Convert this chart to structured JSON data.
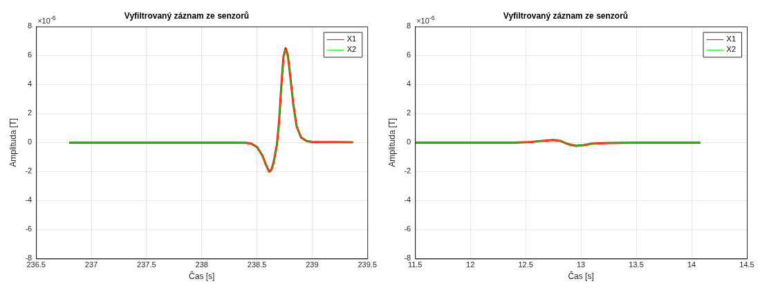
{
  "chart_data": [
    {
      "type": "line",
      "title": "Vyfiltrovaný záznam ze senzorů",
      "xlabel": "Čas [s]",
      "ylabel": "Amplituda [T]",
      "annotations": [
        "×10$^{-6}$"
      ],
      "xlim": [
        236.5,
        239.5
      ],
      "xticks": [
        236.5,
        237,
        237.5,
        238,
        238.5,
        239,
        239.5
      ],
      "ylim": [
        -8,
        8
      ],
      "yticks": [
        -8,
        -6,
        -4,
        -2,
        0,
        2,
        4,
        6,
        8
      ],
      "grid": true,
      "legend": "top right",
      "marker": "none",
      "line_style": "solid",
      "series": [
        {
          "name": "X1",
          "color": "#ff0000",
          "x": [
            236.8,
            238.0,
            238.3,
            238.4,
            238.45,
            238.5,
            238.55,
            238.58,
            238.61,
            238.63,
            238.65,
            238.68,
            238.7,
            238.72,
            238.74,
            238.76,
            238.78,
            238.8,
            238.83,
            238.86,
            238.9,
            238.95,
            239.0,
            239.37
          ],
          "values": [
            0,
            0,
            0,
            -0.02,
            -0.08,
            -0.3,
            -0.9,
            -1.5,
            -2.0,
            -1.9,
            -1.4,
            -0.2,
            1.4,
            3.8,
            5.9,
            6.5,
            6.0,
            4.7,
            2.6,
            1.1,
            0.35,
            0.1,
            0.04,
            0.02
          ]
        },
        {
          "name": "X2",
          "color": "#00ff00",
          "x": [
            236.8,
            238.0,
            238.3,
            238.4,
            238.45,
            238.5,
            238.55,
            238.58,
            238.61,
            238.63,
            238.65,
            238.68,
            238.7,
            238.72,
            238.74,
            238.76,
            238.78,
            238.8,
            238.83,
            238.86,
            238.9,
            238.95,
            239.0,
            239.38
          ],
          "values": [
            0,
            0,
            0,
            -0.02,
            -0.08,
            -0.3,
            -0.9,
            -1.5,
            -2.0,
            -1.9,
            -1.4,
            -0.2,
            1.4,
            3.8,
            5.9,
            6.4,
            6.0,
            4.7,
            2.6,
            1.1,
            0.35,
            0.1,
            0.04,
            0.02
          ]
        }
      ]
    },
    {
      "type": "line",
      "title": "Vyfiltrovaný záznam ze senzorů",
      "xlabel": "Čas [s]",
      "ylabel": "Amplituda [T]",
      "annotations": [
        "×10$^{-6}$"
      ],
      "xlim": [
        11.5,
        14.5
      ],
      "xticks": [
        11.5,
        12,
        12.5,
        13,
        13.5,
        14,
        14.5
      ],
      "ylim": [
        -8,
        8
      ],
      "yticks": [
        -8,
        -6,
        -4,
        -2,
        0,
        2,
        4,
        6,
        8
      ],
      "grid": true,
      "legend": "top right",
      "marker": "none",
      "line_style": "solid",
      "series": [
        {
          "name": "X1",
          "color": "#ff0000",
          "x": [
            11.5,
            12.0,
            12.4,
            12.55,
            12.65,
            12.75,
            12.82,
            12.88,
            12.95,
            13.02,
            13.1,
            13.25,
            13.5,
            14.08
          ],
          "values": [
            0,
            0,
            0,
            0.04,
            0.12,
            0.17,
            0.1,
            -0.1,
            -0.22,
            -0.18,
            -0.08,
            -0.03,
            0,
            0
          ]
        },
        {
          "name": "X2",
          "color": "#00ff00",
          "x": [
            11.5,
            12.0,
            12.4,
            12.55,
            12.65,
            12.75,
            12.82,
            12.88,
            12.95,
            13.02,
            13.1,
            13.25,
            13.5,
            14.08
          ],
          "values": [
            0,
            0,
            0,
            0.04,
            0.12,
            0.16,
            0.1,
            -0.1,
            -0.21,
            -0.18,
            -0.08,
            -0.03,
            0,
            0
          ]
        }
      ]
    }
  ]
}
